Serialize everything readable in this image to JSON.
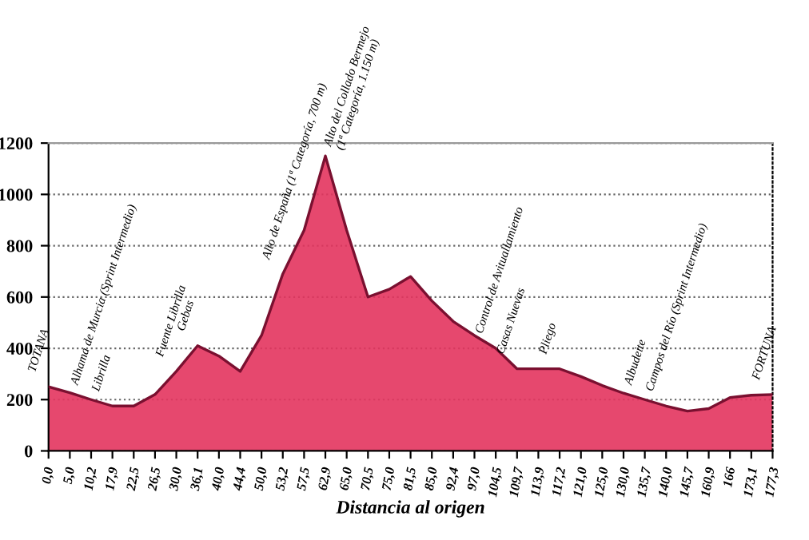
{
  "chart_data": {
    "type": "area",
    "xlabel": "Distancia al origen",
    "categories": [
      "0,0",
      "5,0",
      "10,2",
      "17,9",
      "22,5",
      "26,5",
      "30,0",
      "36,1",
      "40,0",
      "44,4",
      "50,0",
      "53,2",
      "57,5",
      "62,9",
      "65,0",
      "70,5",
      "75,0",
      "81,5",
      "85,0",
      "92,4",
      "97,0",
      "104,5",
      "109,7",
      "113,9",
      "117,2",
      "121,0",
      "125,0",
      "130,0",
      "135,7",
      "140,0",
      "145,7",
      "160,9",
      "166",
      "173,1",
      "177,3"
    ],
    "values": [
      250,
      227,
      200,
      175,
      175,
      220,
      310,
      410,
      370,
      310,
      450,
      690,
      860,
      1150,
      860,
      600,
      630,
      680,
      585,
      505,
      450,
      400,
      320,
      320,
      320,
      290,
      255,
      225,
      200,
      175,
      155,
      165,
      208,
      217,
      220
    ],
    "color": "#e3345e",
    "ylim": [
      0,
      1200
    ],
    "yticks": [
      0,
      200,
      400,
      600,
      800,
      1000,
      1200
    ],
    "grid": "y",
    "annotations": [
      {
        "text": "TOTANA",
        "x": "0,0",
        "y": 250
      },
      {
        "text": "Alhama de Murcia (Sprint Intermedio)",
        "x": "10,2",
        "y": 200
      },
      {
        "text": "Librilla",
        "x": "17,9",
        "y": 175
      },
      {
        "text": "Fuente Librilla",
        "x": "30,0",
        "y": 310
      },
      {
        "text": "Gebas",
        "x": "36,1",
        "y": 410
      },
      {
        "text": "Alto de España (1ª Categoría, 700 m)",
        "x": "53,2",
        "y": 690
      },
      {
        "text": "Alto del Collado Bermejo\n(1ª Categoría, 1.150 m)",
        "x": "62,9",
        "y": 1150
      },
      {
        "text": "Control de Avituallamiento",
        "x": "104,5",
        "y": 400
      },
      {
        "text": "Casas Nuevas",
        "x": "109,7",
        "y": 320
      },
      {
        "text": "Pliego",
        "x": "117,2",
        "y": 320
      },
      {
        "text": "Albudeite",
        "x": "135,7",
        "y": 200
      },
      {
        "text": "Campos del Río (Sprint Intermedio)",
        "x": "140,0",
        "y": 175
      },
      {
        "text": "FORTUNA",
        "x": "177,3",
        "y": 220
      }
    ]
  }
}
